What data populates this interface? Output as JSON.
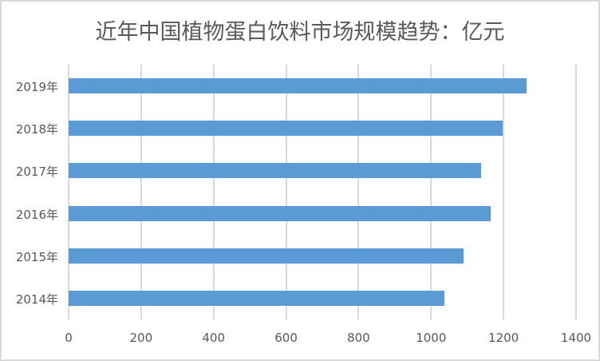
{
  "chart_data": {
    "type": "bar",
    "orientation": "horizontal",
    "title": "近年中国植物蛋白饮料市场规模趋势：亿元",
    "categories": [
      "2014年",
      "2015年",
      "2016年",
      "2017年",
      "2018年",
      "2019年"
    ],
    "values": [
      1037,
      1090,
      1165,
      1139,
      1198,
      1264
    ],
    "xlabel": "",
    "ylabel": "",
    "xlim": [
      0,
      1400
    ],
    "xticks": [
      "0",
      "200",
      "400",
      "600",
      "800",
      "1000",
      "1200",
      "1400"
    ],
    "grid": true,
    "legend": null,
    "bar_color": "#5b9bd5"
  }
}
